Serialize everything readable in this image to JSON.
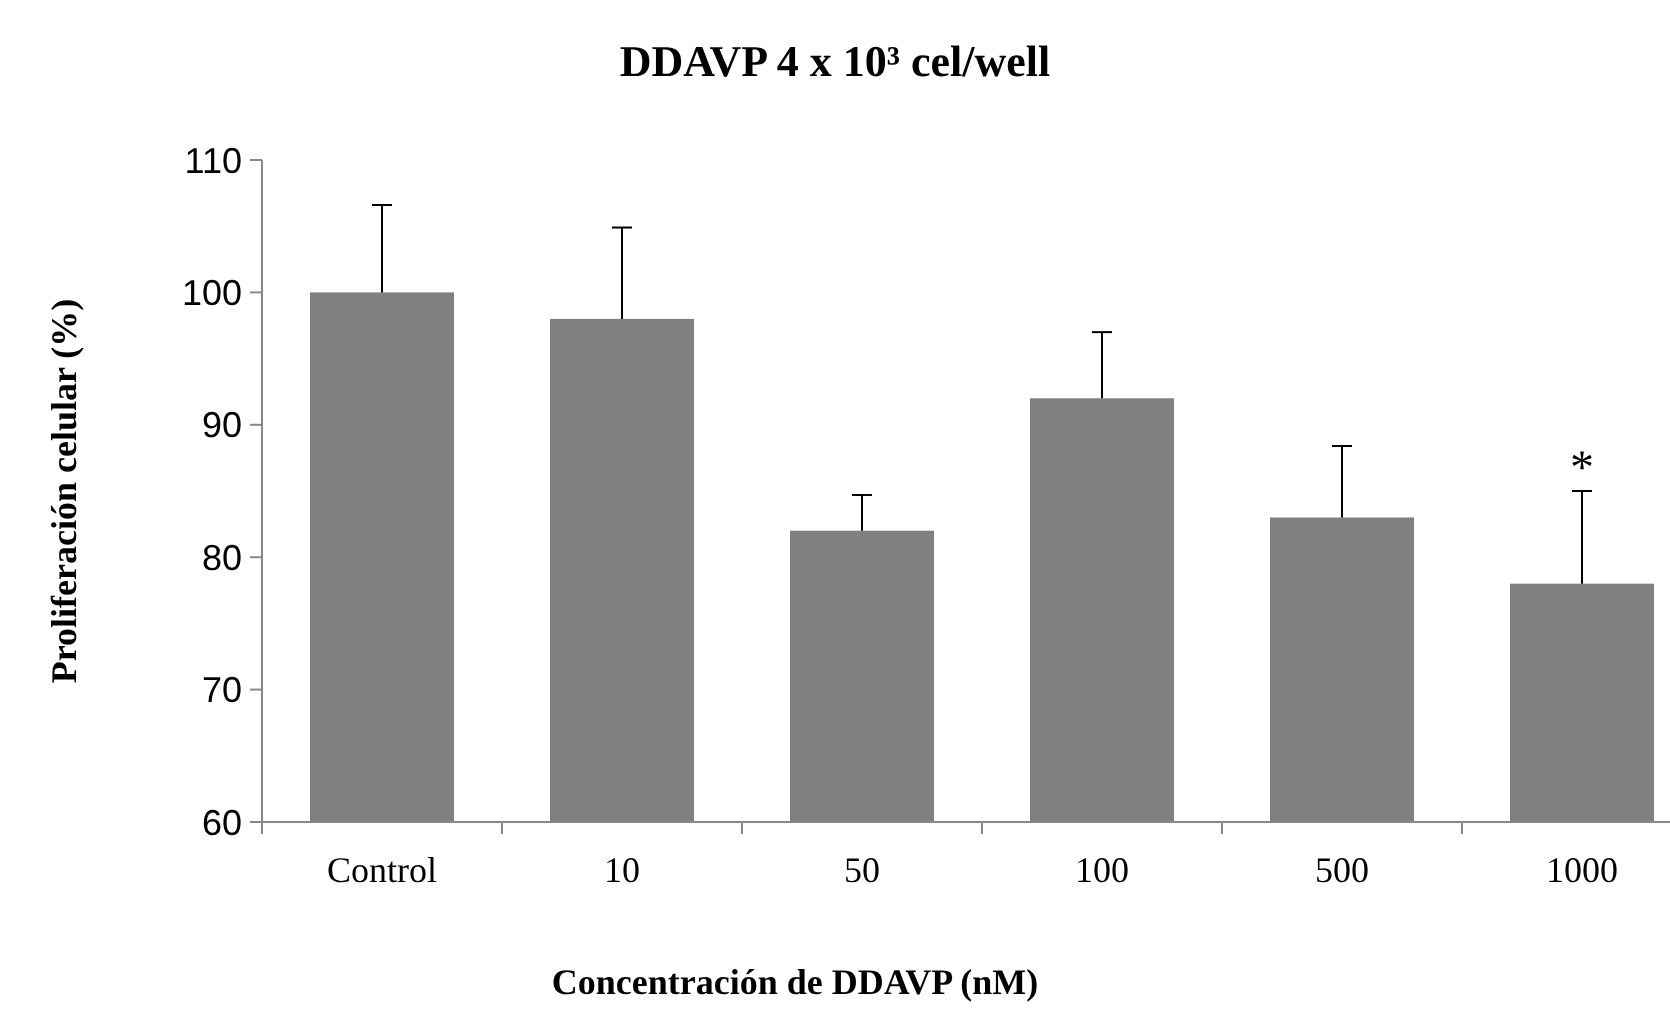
{
  "chart_data": {
    "type": "bar",
    "title": "DDAVP 4 x 10³ cel/well",
    "xlabel": "Concentración de DDAVP (nM)",
    "ylabel": "Proliferación celular (%)",
    "categories": [
      "Control",
      "10",
      "50",
      "100",
      "500",
      "1000"
    ],
    "values": [
      100,
      98,
      82,
      92,
      83,
      78
    ],
    "color": "#808080",
    "errors": [
      [
        100,
        106.6
      ],
      [
        98,
        104.9
      ],
      [
        82,
        84.7
      ],
      [
        92,
        97
      ],
      [
        83,
        88.4
      ],
      [
        78,
        85
      ]
    ],
    "ylim": [
      60,
      110
    ],
    "yticks": [
      60,
      70,
      80,
      90,
      100,
      110
    ],
    "grid": false,
    "annotations": [
      {
        "text": "*",
        "x": "1000",
        "y": 85
      }
    ]
  }
}
